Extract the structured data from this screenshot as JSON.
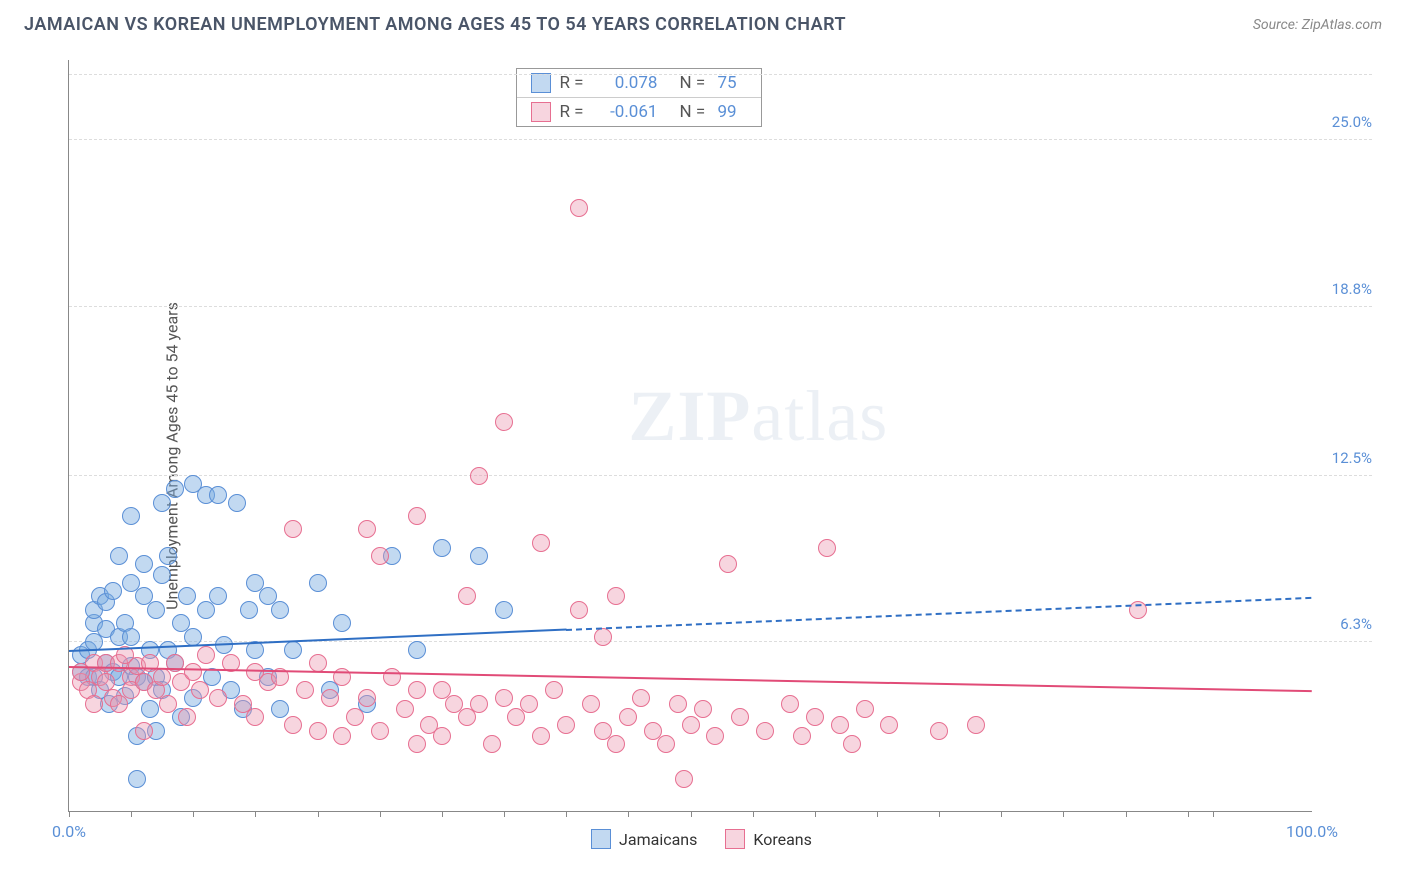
{
  "header": {
    "title": "JAMAICAN VS KOREAN UNEMPLOYMENT AMONG AGES 45 TO 54 YEARS CORRELATION CHART",
    "source_prefix": "Source: ",
    "source_name": "ZipAtlas.com"
  },
  "chart": {
    "type": "scatter",
    "ylabel": "Unemployment Among Ages 45 to 54 years",
    "xlim": [
      0,
      100
    ],
    "ylim": [
      0,
      28
    ],
    "background_color": "#ffffff",
    "grid_color": "#dddddd",
    "axis_color": "#888888",
    "label_color_blue": "#5a8fd6",
    "y_ticks": [
      {
        "v": 6.3,
        "label": "6.3%"
      },
      {
        "v": 12.5,
        "label": "12.5%"
      },
      {
        "v": 18.8,
        "label": "18.8%"
      },
      {
        "v": 25.0,
        "label": "25.0%"
      }
    ],
    "x_ticks": [
      0,
      5,
      10,
      15,
      20,
      25,
      30,
      35,
      40,
      45,
      50,
      55,
      60,
      65,
      70,
      75,
      80,
      85,
      90,
      92
    ],
    "x_start_label": "0.0%",
    "x_end_label": "100.0%",
    "marker_radius": 9,
    "marker_border_width": 1.5,
    "series": [
      {
        "name": "Jamaicans",
        "fill": "rgba(120,170,225,0.45)",
        "stroke": "#5a8fd6",
        "trend": {
          "y0": 6.0,
          "y1_at40": 6.8,
          "color": "#2f6fc4",
          "width": 2,
          "dash_after_x": 40,
          "y1_at100": 8.0
        },
        "points": [
          [
            1,
            5.2
          ],
          [
            1,
            5.8
          ],
          [
            1.5,
            6.0
          ],
          [
            1.5,
            5.0
          ],
          [
            2,
            6.3
          ],
          [
            2,
            7.0
          ],
          [
            2,
            7.5
          ],
          [
            2,
            5.0
          ],
          [
            2.5,
            8.0
          ],
          [
            2.5,
            4.5
          ],
          [
            3,
            5.5
          ],
          [
            3,
            6.8
          ],
          [
            3,
            7.8
          ],
          [
            3.2,
            4.0
          ],
          [
            3.5,
            5.2
          ],
          [
            3.5,
            8.2
          ],
          [
            4,
            6.5
          ],
          [
            4,
            5.0
          ],
          [
            4,
            9.5
          ],
          [
            4.5,
            7.0
          ],
          [
            4.5,
            4.3
          ],
          [
            5,
            11.0
          ],
          [
            5,
            8.5
          ],
          [
            5,
            5.4
          ],
          [
            5,
            6.5
          ],
          [
            5.5,
            5.0
          ],
          [
            5.5,
            2.8
          ],
          [
            5.5,
            1.2
          ],
          [
            6,
            8.0
          ],
          [
            6,
            9.2
          ],
          [
            6,
            4.8
          ],
          [
            6.5,
            6.0
          ],
          [
            6.5,
            3.8
          ],
          [
            7,
            7.5
          ],
          [
            7,
            5.0
          ],
          [
            7,
            3.0
          ],
          [
            7.5,
            11.5
          ],
          [
            7.5,
            8.8
          ],
          [
            7.5,
            4.5
          ],
          [
            8,
            6.0
          ],
          [
            8,
            9.5
          ],
          [
            8.5,
            12.0
          ],
          [
            8.5,
            5.5
          ],
          [
            9,
            7.0
          ],
          [
            9,
            3.5
          ],
          [
            9.5,
            8.0
          ],
          [
            10,
            12.2
          ],
          [
            10,
            6.5
          ],
          [
            10,
            4.2
          ],
          [
            11,
            7.5
          ],
          [
            11,
            11.8
          ],
          [
            11.5,
            5.0
          ],
          [
            12,
            11.8
          ],
          [
            12,
            8.0
          ],
          [
            12.5,
            6.2
          ],
          [
            13,
            4.5
          ],
          [
            13.5,
            11.5
          ],
          [
            14,
            3.8
          ],
          [
            14.5,
            7.5
          ],
          [
            15,
            8.5
          ],
          [
            15,
            6.0
          ],
          [
            16,
            5.0
          ],
          [
            16,
            8.0
          ],
          [
            17,
            3.8
          ],
          [
            17,
            7.5
          ],
          [
            18,
            6.0
          ],
          [
            20,
            8.5
          ],
          [
            21,
            4.5
          ],
          [
            22,
            7.0
          ],
          [
            24,
            4.0
          ],
          [
            26,
            9.5
          ],
          [
            28,
            6.0
          ],
          [
            30,
            9.8
          ],
          [
            33,
            9.5
          ],
          [
            35,
            7.5
          ]
        ]
      },
      {
        "name": "Koreans",
        "fill": "rgba(235,150,175,0.40)",
        "stroke": "#e76f91",
        "trend": {
          "y0": 5.4,
          "y1_at100": 4.5,
          "color": "#e14b77",
          "width": 2
        },
        "points": [
          [
            1,
            4.8
          ],
          [
            1,
            5.2
          ],
          [
            1.5,
            4.5
          ],
          [
            2,
            5.5
          ],
          [
            2,
            4.0
          ],
          [
            2.5,
            5.0
          ],
          [
            3,
            4.8
          ],
          [
            3,
            5.5
          ],
          [
            3.5,
            4.2
          ],
          [
            4,
            5.5
          ],
          [
            4,
            4.0
          ],
          [
            4.5,
            5.8
          ],
          [
            5,
            5.0
          ],
          [
            5,
            4.5
          ],
          [
            5.5,
            5.4
          ],
          [
            6,
            4.8
          ],
          [
            6,
            3.0
          ],
          [
            6.5,
            5.5
          ],
          [
            7,
            4.5
          ],
          [
            7.5,
            5.0
          ],
          [
            8,
            4.0
          ],
          [
            8.5,
            5.5
          ],
          [
            9,
            4.8
          ],
          [
            9.5,
            3.5
          ],
          [
            10,
            5.2
          ],
          [
            10.5,
            4.5
          ],
          [
            11,
            5.8
          ],
          [
            12,
            4.2
          ],
          [
            13,
            5.5
          ],
          [
            14,
            4.0
          ],
          [
            15,
            5.2
          ],
          [
            15,
            3.5
          ],
          [
            16,
            4.8
          ],
          [
            17,
            5.0
          ],
          [
            18,
            3.2
          ],
          [
            18,
            10.5
          ],
          [
            19,
            4.5
          ],
          [
            20,
            5.5
          ],
          [
            20,
            3.0
          ],
          [
            21,
            4.2
          ],
          [
            22,
            5.0
          ],
          [
            22,
            2.8
          ],
          [
            23,
            3.5
          ],
          [
            24,
            10.5
          ],
          [
            24,
            4.2
          ],
          [
            25,
            9.5
          ],
          [
            25,
            3.0
          ],
          [
            26,
            5.0
          ],
          [
            27,
            3.8
          ],
          [
            28,
            11.0
          ],
          [
            28,
            4.5
          ],
          [
            28,
            2.5
          ],
          [
            29,
            3.2
          ],
          [
            30,
            4.5
          ],
          [
            30,
            2.8
          ],
          [
            31,
            4.0
          ],
          [
            32,
            8.0
          ],
          [
            32,
            3.5
          ],
          [
            33,
            12.5
          ],
          [
            33,
            4.0
          ],
          [
            34,
            2.5
          ],
          [
            35,
            4.2
          ],
          [
            35,
            14.5
          ],
          [
            36,
            3.5
          ],
          [
            37,
            4.0
          ],
          [
            38,
            2.8
          ],
          [
            38,
            10.0
          ],
          [
            39,
            4.5
          ],
          [
            40,
            3.2
          ],
          [
            41,
            7.5
          ],
          [
            41,
            22.5
          ],
          [
            42,
            4.0
          ],
          [
            43,
            6.5
          ],
          [
            43,
            3.0
          ],
          [
            44,
            8.0
          ],
          [
            44,
            2.5
          ],
          [
            45,
            3.5
          ],
          [
            46,
            4.2
          ],
          [
            47,
            3.0
          ],
          [
            48,
            2.5
          ],
          [
            49,
            4.0
          ],
          [
            49.5,
            1.2
          ],
          [
            50,
            3.2
          ],
          [
            51,
            3.8
          ],
          [
            52,
            2.8
          ],
          [
            53,
            9.2
          ],
          [
            54,
            3.5
          ],
          [
            56,
            3.0
          ],
          [
            58,
            4.0
          ],
          [
            59,
            2.8
          ],
          [
            60,
            3.5
          ],
          [
            61,
            9.8
          ],
          [
            62,
            3.2
          ],
          [
            63,
            2.5
          ],
          [
            64,
            3.8
          ],
          [
            66,
            3.2
          ],
          [
            70,
            3.0
          ],
          [
            73,
            3.2
          ],
          [
            86,
            7.5
          ]
        ]
      }
    ],
    "stats": [
      {
        "swatch_fill": "rgba(120,170,225,0.45)",
        "swatch_stroke": "#5a8fd6",
        "r_label": "R =",
        "r_val": "0.078",
        "n_label": "N =",
        "n_val": "75"
      },
      {
        "swatch_fill": "rgba(235,150,175,0.40)",
        "swatch_stroke": "#e76f91",
        "r_label": "R =",
        "r_val": "-0.061",
        "n_label": "N =",
        "n_val": "99"
      }
    ],
    "legend": [
      {
        "swatch_fill": "rgba(120,170,225,0.45)",
        "swatch_stroke": "#5a8fd6",
        "label": "Jamaicans"
      },
      {
        "swatch_fill": "rgba(235,150,175,0.40)",
        "swatch_stroke": "#e76f91",
        "label": "Koreans"
      }
    ],
    "watermark": {
      "bold": "ZIP",
      "rest": "atlas"
    }
  }
}
